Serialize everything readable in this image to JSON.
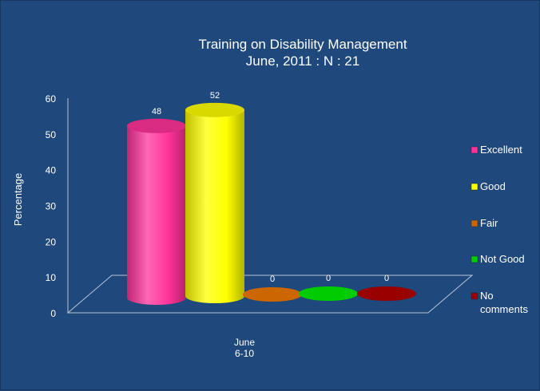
{
  "chart_data": {
    "type": "bar",
    "title_lines": [
      "Training on Disability Management",
      "June, 2011 : N : 21"
    ],
    "ylabel": "Percentage",
    "ylim": [
      0,
      60
    ],
    "yticks": [
      0,
      10,
      20,
      30,
      40,
      50,
      60
    ],
    "category": [
      "June",
      "6-10"
    ],
    "series": [
      {
        "name": "Excellent",
        "value": 48,
        "color": "#ff3399"
      },
      {
        "name": "Good",
        "value": 52,
        "color": "#ffff00"
      },
      {
        "name": "Fair",
        "value": 0,
        "color": "#cc6600"
      },
      {
        "name": "Not Good",
        "value": 0,
        "color": "#00cc00"
      },
      {
        "name": "No comments",
        "value": 0,
        "color": "#990000"
      }
    ],
    "legend": "right",
    "grid": false
  }
}
